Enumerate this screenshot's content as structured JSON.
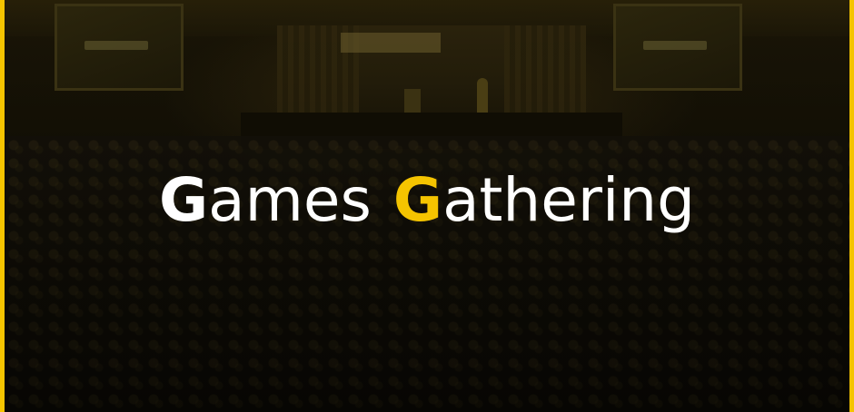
{
  "title": {
    "word1": {
      "initial": "G",
      "rest": "ames"
    },
    "word2": {
      "initial": "G",
      "rest": "athering"
    }
  },
  "colors": {
    "accent": "#f5c400",
    "text": "#ffffff",
    "background": "#0e0c05"
  }
}
